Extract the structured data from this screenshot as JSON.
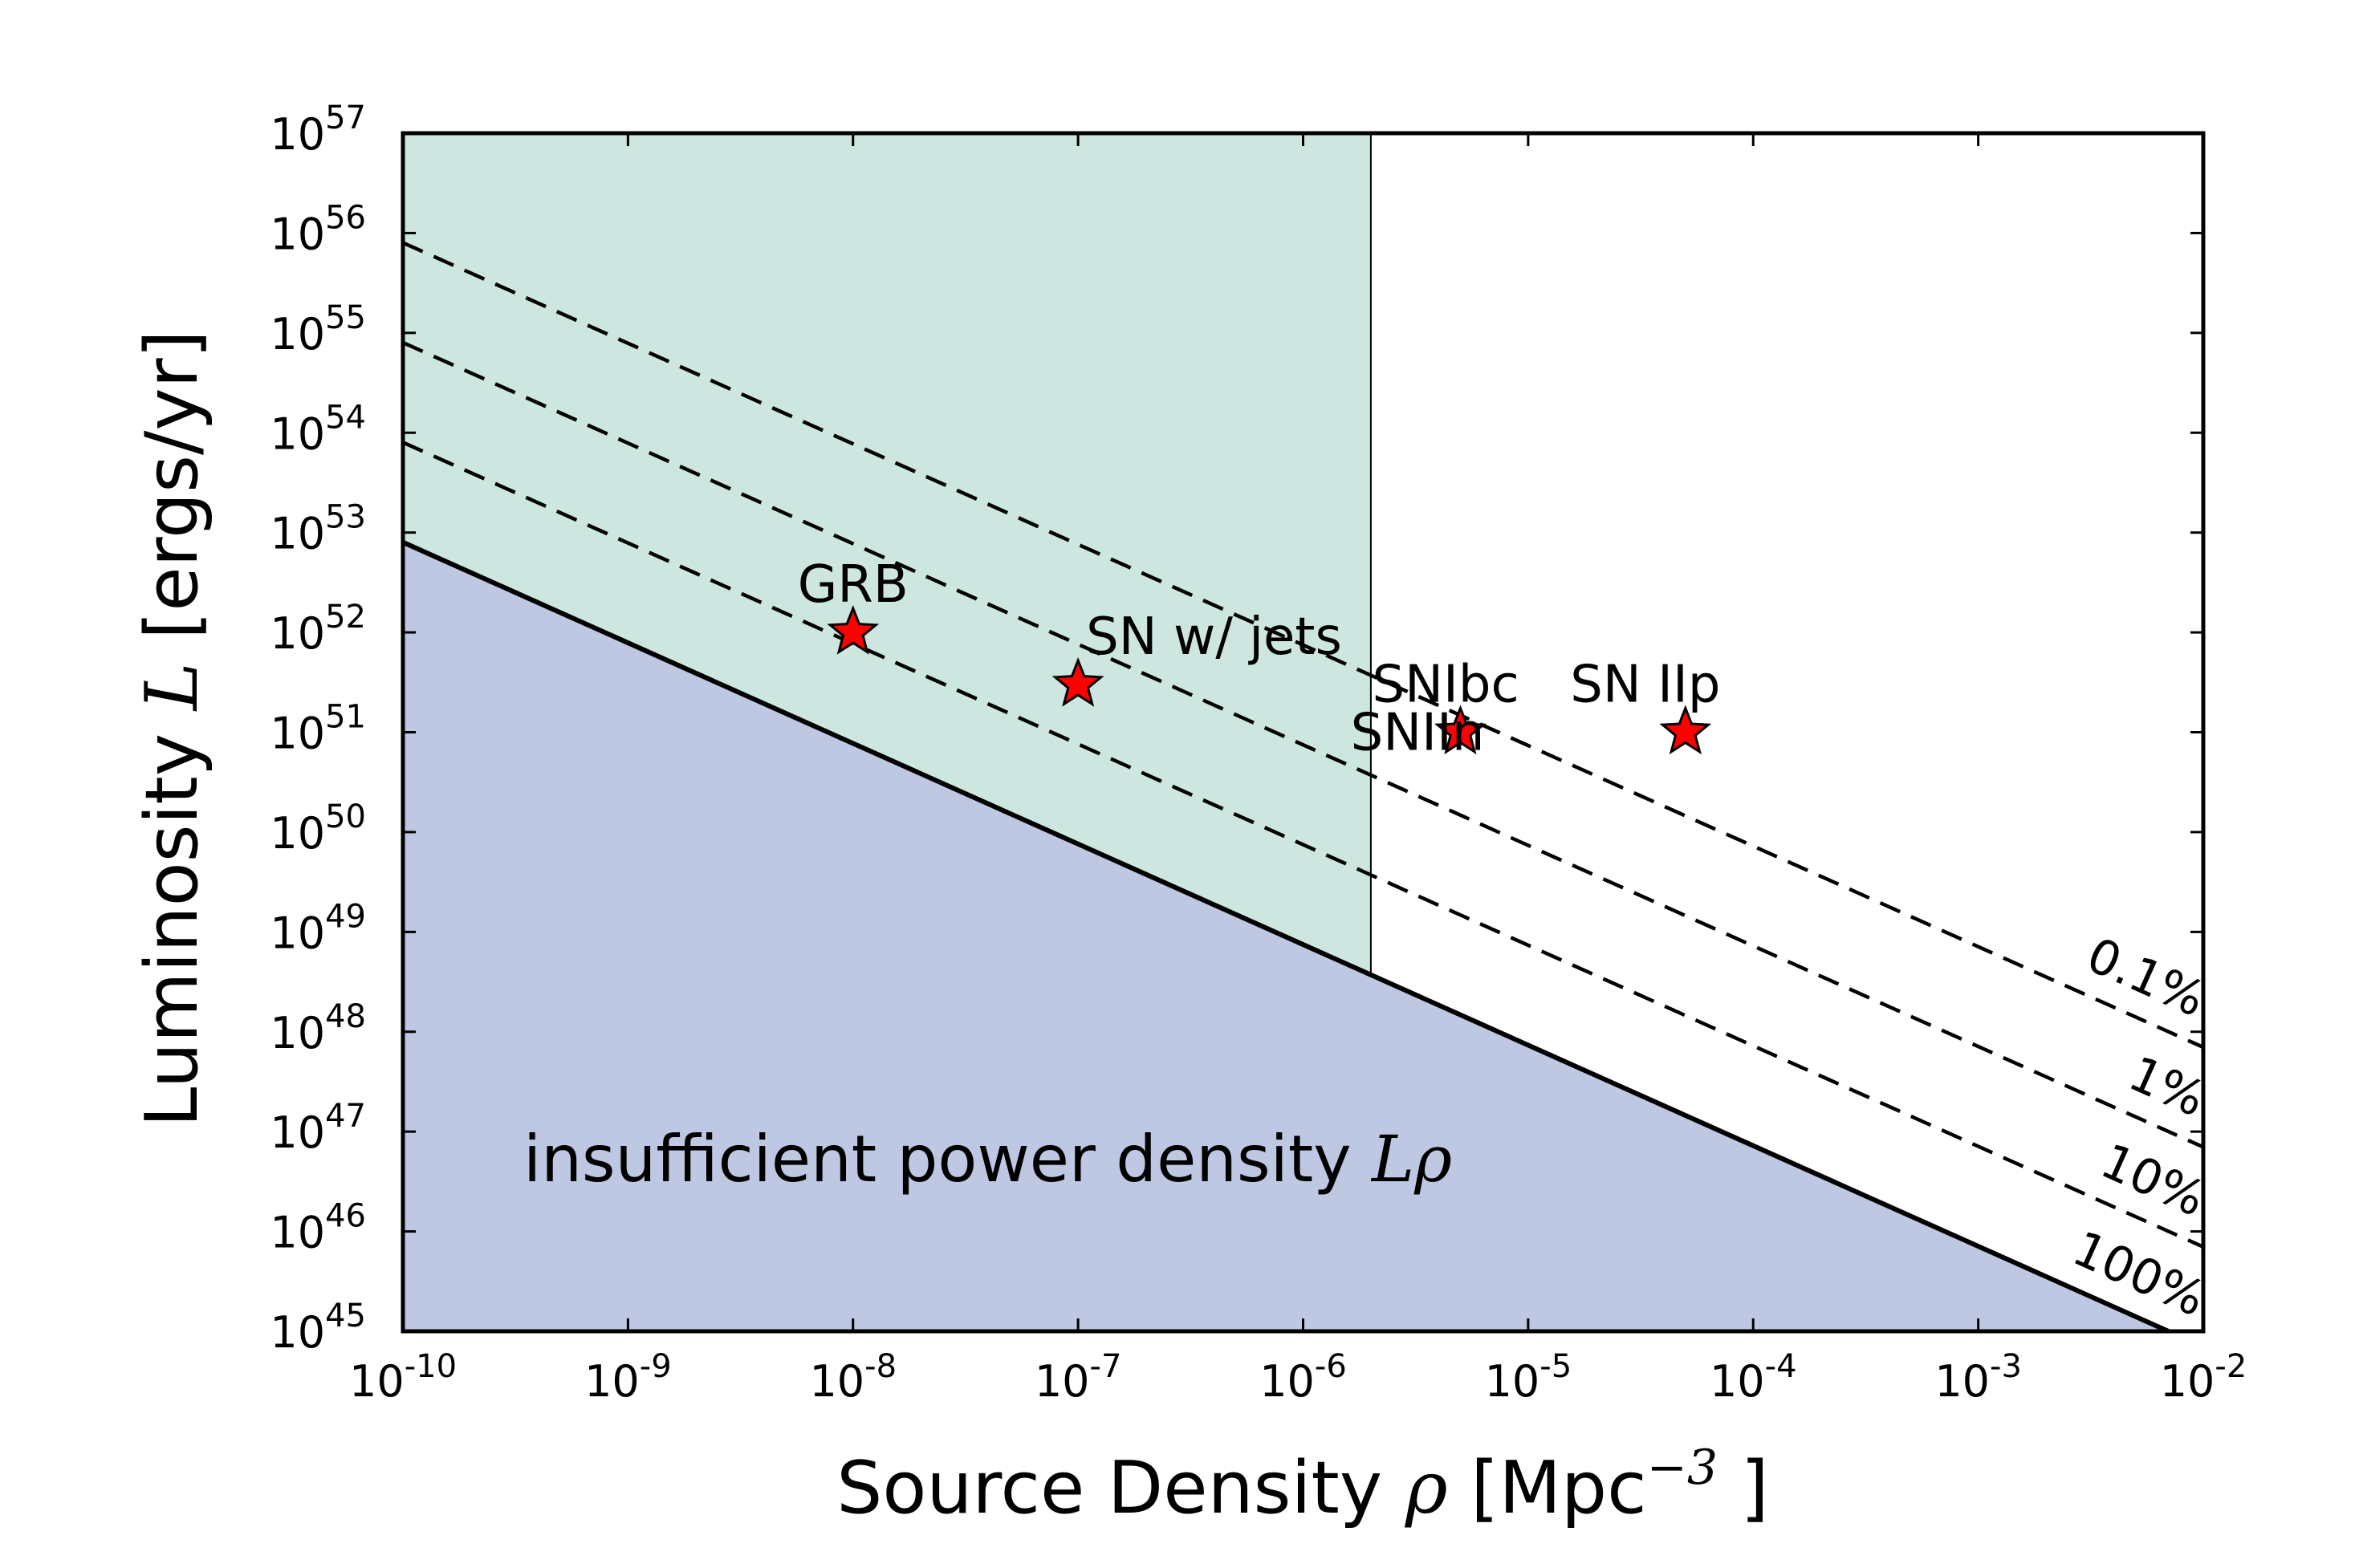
{
  "chart_data": {
    "type": "line",
    "xscale": "log",
    "yscale": "log",
    "xlim": [
      1e-10,
      0.01
    ],
    "ylim": [
      1e+45,
      1e+57
    ],
    "xlabel": {
      "prefix": "Source Density ",
      "symbol": "ρ",
      "suffix": " [Mpc",
      "exp": "−3",
      "close": " ]"
    },
    "ylabel": {
      "prefix": "Luminosity ",
      "symbol": "L",
      "suffix": " [ergs/yr]"
    },
    "x_ticks": [
      {
        "value": 1e-10,
        "base": "10",
        "exp": "-10"
      },
      {
        "value": 1e-09,
        "base": "10",
        "exp": "-9"
      },
      {
        "value": 1e-08,
        "base": "10",
        "exp": "-8"
      },
      {
        "value": 1e-07,
        "base": "10",
        "exp": "-7"
      },
      {
        "value": 1e-06,
        "base": "10",
        "exp": "-6"
      },
      {
        "value": 1e-05,
        "base": "10",
        "exp": "-5"
      },
      {
        "value": 0.0001,
        "base": "10",
        "exp": "-4"
      },
      {
        "value": 0.001,
        "base": "10",
        "exp": "-3"
      },
      {
        "value": 0.01,
        "base": "10",
        "exp": "-2"
      }
    ],
    "y_ticks": [
      {
        "value": 1e+45,
        "base": "10",
        "exp": "45"
      },
      {
        "value": 1e+46,
        "base": "10",
        "exp": "46"
      },
      {
        "value": 1e+47,
        "base": "10",
        "exp": "47"
      },
      {
        "value": 1e+48,
        "base": "10",
        "exp": "48"
      },
      {
        "value": 1e+49,
        "base": "10",
        "exp": "49"
      },
      {
        "value": 1e+50,
        "base": "10",
        "exp": "50"
      },
      {
        "value": 1e+51,
        "base": "10",
        "exp": "51"
      },
      {
        "value": 1e+52,
        "base": "10",
        "exp": "52"
      },
      {
        "value": 1e+53,
        "base": "10",
        "exp": "53"
      },
      {
        "value": 1e+54,
        "base": "10",
        "exp": "54"
      },
      {
        "value": 1e+55,
        "base": "10",
        "exp": "55"
      },
      {
        "value": 1e+56,
        "base": "10",
        "exp": "56"
      },
      {
        "value": 1e+57,
        "base": "10",
        "exp": "57"
      }
    ],
    "shaded_region": {
      "x": [
        1e-10,
        2e-06
      ],
      "color": "#cde7e0"
    },
    "threshold_line": {
      "x": 2e-06
    },
    "insufficient_region": {
      "color": "#bec8e2",
      "label": "insufficient power density ",
      "label_math": "Lρ"
    },
    "lines": [
      {
        "label": "100%",
        "style": "solid",
        "points": [
          [
            1e-10,
            8e+52
          ],
          [
            0.007,
            1e+45
          ]
        ]
      },
      {
        "label": "10%",
        "style": "dashed",
        "points": [
          [
            1e-10,
            8e+53
          ],
          [
            0.01,
            7e+45
          ]
        ]
      },
      {
        "label": "1%",
        "style": "dashed",
        "points": [
          [
            1e-10,
            8e+54
          ],
          [
            0.01,
            7e+46
          ]
        ]
      },
      {
        "label": "0.1%",
        "style": "dashed",
        "points": [
          [
            1e-10,
            8e+55
          ],
          [
            0.01,
            7e+47
          ]
        ]
      }
    ],
    "points": [
      {
        "label": "GRB",
        "x": 1e-08,
        "y": 1e+52
      },
      {
        "label": "SN w/ jets",
        "x": 1e-07,
        "y": 3e+51
      },
      {
        "label": "SNIbc",
        "x": 5e-06,
        "y": 1e+51
      },
      {
        "label": "SNIIn",
        "x": 5e-06,
        "y": 1e+51
      },
      {
        "label": "SN IIp",
        "x": 5e-05,
        "y": 1e+51
      }
    ],
    "marker_color": "#ff0000",
    "grid": false
  }
}
